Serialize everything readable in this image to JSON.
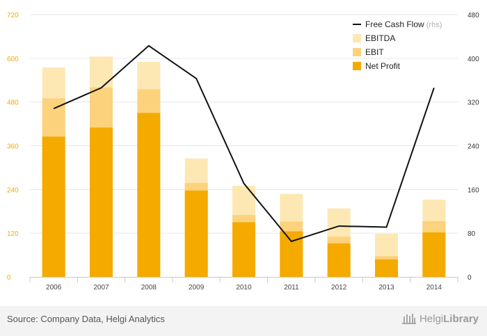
{
  "chart_data": {
    "type": "bar",
    "categories": [
      "2006",
      "2007",
      "2008",
      "2009",
      "2010",
      "2011",
      "2012",
      "2013",
      "2014"
    ],
    "series": [
      {
        "name": "EBITDA",
        "type": "bar",
        "axis": "left",
        "color": "#fde8b4",
        "values": [
          575,
          605,
          590,
          325,
          250,
          228,
          188,
          118,
          212
        ]
      },
      {
        "name": "EBIT",
        "type": "bar",
        "axis": "left",
        "color": "#fcd27c",
        "values": [
          490,
          520,
          515,
          258,
          170,
          152,
          110,
          57,
          153
        ]
      },
      {
        "name": "Net Profit",
        "type": "bar",
        "axis": "left",
        "color": "#f5aa00",
        "values": [
          385,
          410,
          450,
          237,
          150,
          125,
          92,
          48,
          122
        ]
      },
      {
        "name": "Free Cash Flow",
        "type": "line",
        "axis": "right",
        "color": "#111111",
        "values": [
          308,
          346,
          423,
          363,
          171,
          65,
          93,
          91,
          346
        ]
      }
    ],
    "yticks_left": [
      "0",
      "120",
      "240",
      "360",
      "480",
      "600",
      "720"
    ],
    "yticks_right": [
      "0",
      "80",
      "160",
      "240",
      "320",
      "400",
      "480"
    ],
    "ylim_left": [
      0,
      720
    ],
    "ylim_right": [
      0,
      480
    ],
    "legend": {
      "position": "top-right",
      "items": [
        {
          "label": "Free Cash Flow",
          "suffix": "(rhs)",
          "kind": "line",
          "color": "#111111"
        },
        {
          "label": "EBITDA",
          "suffix": "",
          "kind": "box",
          "color": "#fde8b4"
        },
        {
          "label": "EBIT",
          "suffix": "",
          "kind": "box",
          "color": "#fcd27c"
        },
        {
          "label": "Net Profit",
          "suffix": "",
          "kind": "box",
          "color": "#f5aa00"
        }
      ]
    },
    "grid": true,
    "left_axis_color": "#f5aa00",
    "right_axis_color": "#333333"
  },
  "footer": {
    "source": "Source: Company Data, Helgi Analytics",
    "logo_word1": "Helgi",
    "logo_word2": "Library"
  }
}
